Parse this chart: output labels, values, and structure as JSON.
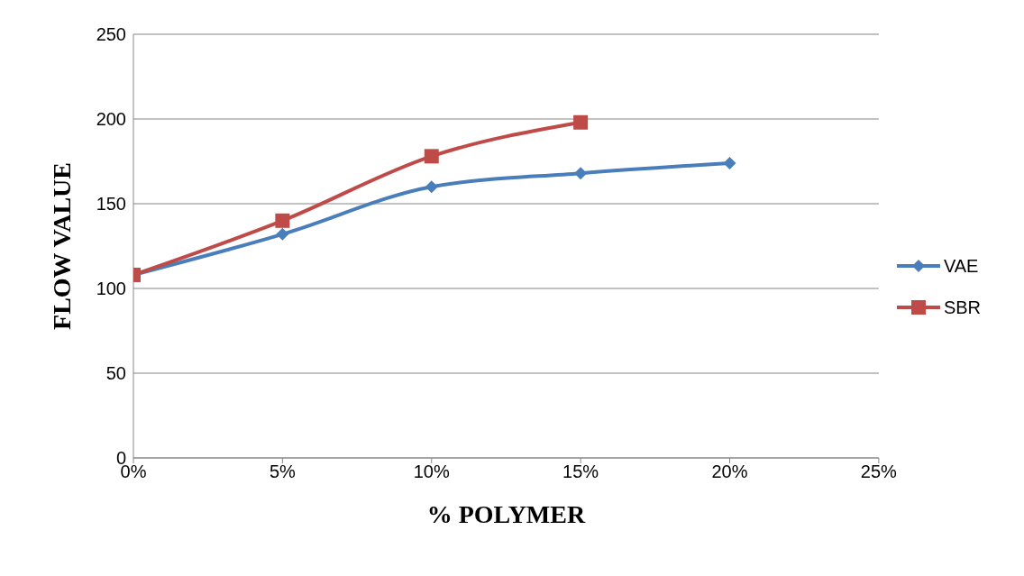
{
  "chart_data": {
    "type": "line",
    "xlabel": "% POLYMER",
    "ylabel": "FLOW VALUE",
    "x": [
      0,
      5,
      10,
      15,
      20
    ],
    "series": [
      {
        "name": "VAE",
        "color": "#4a7ebb",
        "marker": "diamond",
        "values": [
          108,
          132,
          160,
          168,
          174
        ]
      },
      {
        "name": "SBR",
        "color": "#be4b48",
        "marker": "square",
        "x": [
          0,
          5,
          10,
          15
        ],
        "values": [
          108,
          140,
          178,
          198
        ]
      }
    ],
    "xlim": [
      0,
      25
    ],
    "xticks": [
      {
        "value": 0,
        "label": "0%"
      },
      {
        "value": 5,
        "label": "5%"
      },
      {
        "value": 10,
        "label": "10%"
      },
      {
        "value": 15,
        "label": "15%"
      },
      {
        "value": 20,
        "label": "20%"
      },
      {
        "value": 25,
        "label": "25%"
      }
    ],
    "ylim": [
      0,
      250
    ],
    "yticks": [
      0,
      50,
      100,
      150,
      200,
      250
    ],
    "grid": "y",
    "legend": "right",
    "line_style": "solid"
  }
}
